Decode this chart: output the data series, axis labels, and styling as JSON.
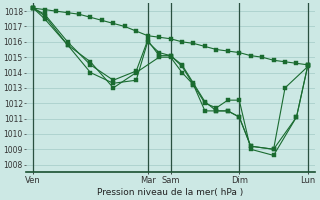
{
  "title": "Pression niveau de la mer( hPa )",
  "bg_color": "#cce8e4",
  "grid_color": "#aad0cc",
  "line_color": "#1a6b30",
  "ylim": [
    1007.5,
    1018.5
  ],
  "yticks": [
    1008,
    1009,
    1010,
    1011,
    1012,
    1013,
    1014,
    1015,
    1016,
    1017,
    1018
  ],
  "xlim": [
    -0.3,
    12.3
  ],
  "xtick_labels": [
    "Ven",
    "Mar",
    "Sam",
    "Dim",
    "Lun"
  ],
  "xtick_positions": [
    0,
    5.0,
    6.0,
    9.0,
    12.0
  ],
  "vlines": [
    0,
    5.0,
    6.0,
    9.0,
    12.0
  ],
  "series": [
    {
      "x": [
        0,
        0.5,
        1.0,
        1.5,
        2.0,
        2.5,
        3.0,
        3.5,
        4.0,
        4.5,
        5.0,
        5.5,
        6.0,
        6.5,
        7.0,
        7.5,
        8.0,
        8.5,
        9.0,
        9.5,
        10.0,
        10.5,
        11.0,
        11.5,
        12.0
      ],
      "y": [
        1018.2,
        1018.1,
        1018.0,
        1017.9,
        1017.8,
        1017.6,
        1017.4,
        1017.2,
        1017.0,
        1016.7,
        1016.4,
        1016.3,
        1016.2,
        1016.0,
        1015.9,
        1015.7,
        1015.5,
        1015.4,
        1015.3,
        1015.1,
        1015.0,
        1014.8,
        1014.7,
        1014.6,
        1014.5
      ]
    },
    {
      "x": [
        0,
        0.5,
        1.5,
        2.5,
        3.5,
        4.5,
        5.0,
        5.5,
        6.0,
        6.5,
        7.0,
        7.5,
        8.0,
        8.5,
        9.0,
        9.5,
        10.5,
        11.0,
        12.0
      ],
      "y": [
        1018.2,
        1017.8,
        1016.0,
        1014.5,
        1013.5,
        1014.1,
        1016.1,
        1015.1,
        1015.1,
        1014.5,
        1013.3,
        1012.1,
        1011.5,
        1011.5,
        1011.1,
        1009.2,
        1009.0,
        1013.0,
        1014.4
      ]
    },
    {
      "x": [
        0,
        0.5,
        1.5,
        2.5,
        3.5,
        4.5,
        5.0,
        5.5,
        6.0,
        6.5,
        7.0,
        7.5,
        8.0,
        8.5,
        9.0,
        9.5,
        10.5,
        11.5,
        12.0
      ],
      "y": [
        1018.2,
        1017.7,
        1015.8,
        1014.0,
        1013.3,
        1013.5,
        1016.0,
        1015.3,
        1015.1,
        1014.4,
        1013.2,
        1012.0,
        1011.7,
        1012.2,
        1012.2,
        1009.0,
        1008.6,
        1011.1,
        1014.5
      ]
    },
    {
      "x": [
        0,
        0.5,
        1.5,
        2.5,
        3.5,
        4.5,
        5.5,
        6.0,
        6.5,
        7.0,
        7.5,
        8.0,
        8.5,
        9.0,
        9.5,
        10.5,
        11.5,
        12.0
      ],
      "y": [
        1018.2,
        1017.5,
        1015.8,
        1014.7,
        1013.0,
        1014.0,
        1015.0,
        1015.0,
        1014.0,
        1013.2,
        1011.5,
        1011.5,
        1011.5,
        1011.1,
        1009.2,
        1009.0,
        1011.1,
        1014.5
      ]
    }
  ]
}
